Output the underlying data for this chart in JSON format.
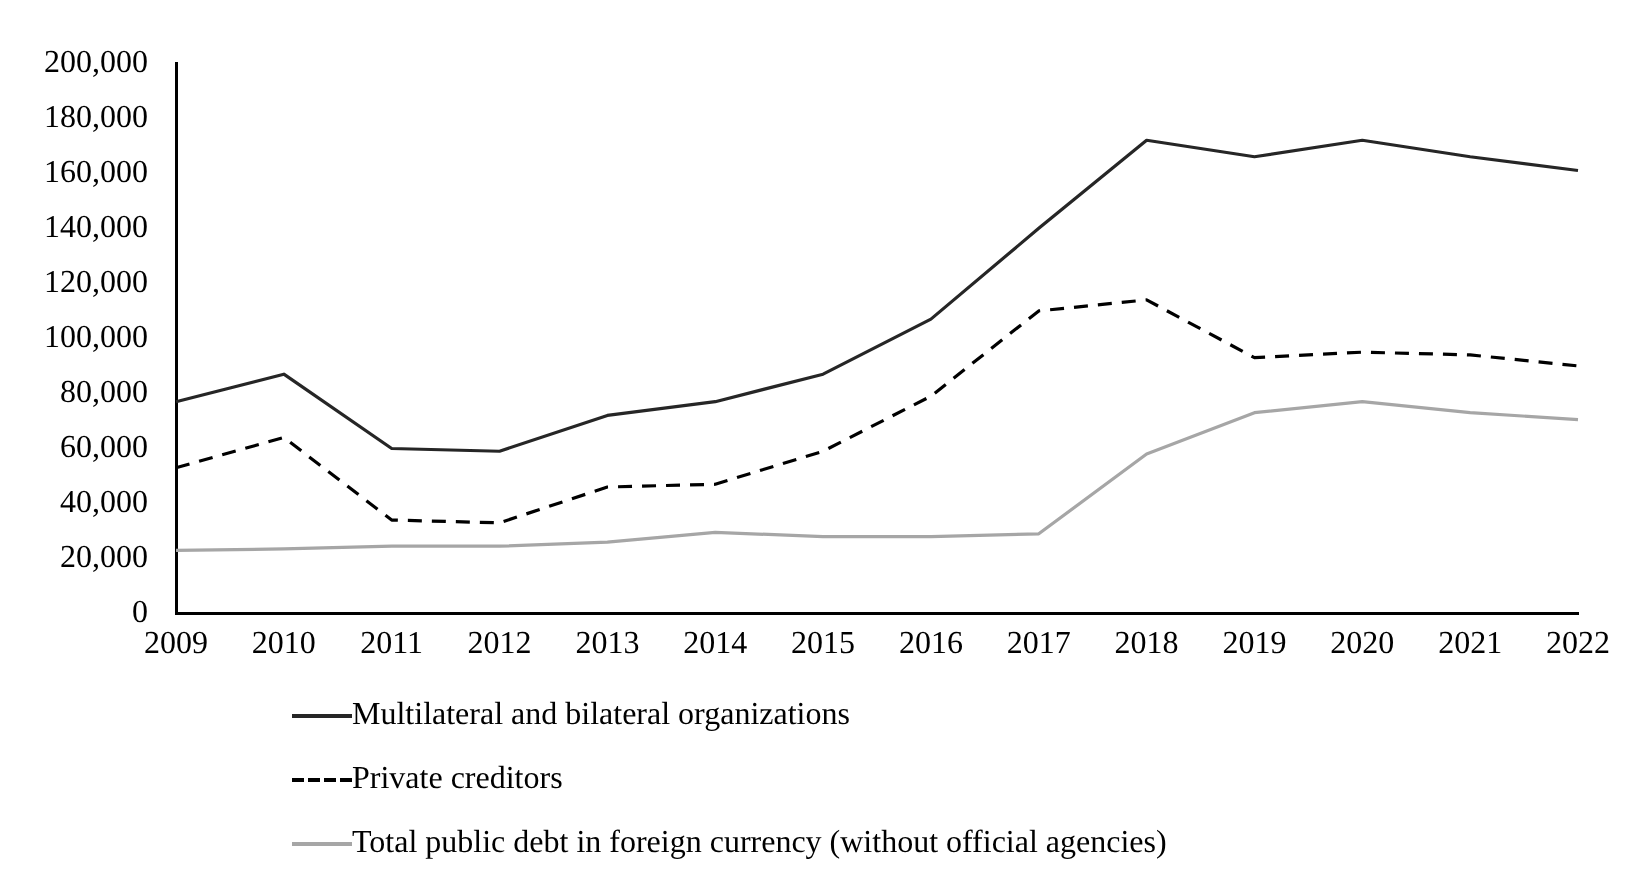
{
  "chart_data": {
    "type": "line",
    "categories": [
      "2009",
      "2010",
      "2011",
      "2012",
      "2013",
      "2014",
      "2015",
      "2016",
      "2017",
      "2018",
      "2019",
      "2020",
      "2021",
      "2022"
    ],
    "series": [
      {
        "name": "Multilateral and bilateral organizations",
        "color": "#262626",
        "line_style": "solid",
        "values": [
          77000,
          87000,
          60000,
          59000,
          72000,
          77000,
          87000,
          107000,
          140000,
          172000,
          166000,
          172000,
          166000,
          161000
        ]
      },
      {
        "name": "Private creditors",
        "color": "#000000",
        "line_style": "dashed",
        "values": [
          53000,
          64000,
          34000,
          33000,
          46000,
          47000,
          59000,
          79000,
          110000,
          114000,
          93000,
          95000,
          94000,
          90000
        ]
      },
      {
        "name": "Total public debt in foreign currency (without official agencies)",
        "color": "#a6a6a6",
        "line_style": "solid",
        "values": [
          23000,
          23500,
          24500,
          24500,
          26000,
          29500,
          28000,
          28000,
          29000,
          58000,
          73000,
          77000,
          73000,
          70500
        ]
      }
    ],
    "ylim": [
      0,
      200000
    ],
    "yticks": [
      {
        "value": 0,
        "label": "0"
      },
      {
        "value": 20000,
        "label": "20,000"
      },
      {
        "value": 40000,
        "label": "40,000"
      },
      {
        "value": 60000,
        "label": "60,000"
      },
      {
        "value": 80000,
        "label": "80,000"
      },
      {
        "value": 100000,
        "label": "100,000"
      },
      {
        "value": 120000,
        "label": "120,000"
      },
      {
        "value": 140000,
        "label": "140,000"
      },
      {
        "value": 160000,
        "label": "160,000"
      },
      {
        "value": 180000,
        "label": "180,000"
      },
      {
        "value": 200000,
        "label": "200,000"
      }
    ],
    "grid": false,
    "legend": "bottom",
    "marker": "none"
  }
}
